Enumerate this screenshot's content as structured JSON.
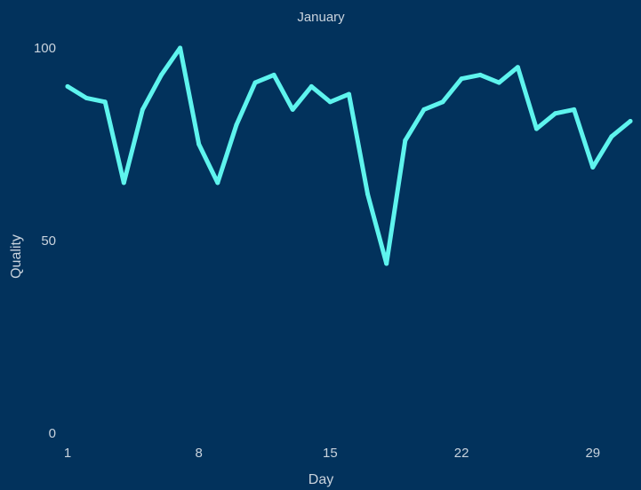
{
  "chart_data": {
    "type": "line",
    "title": "January",
    "xlabel": "Day",
    "ylabel": "Quality",
    "x_ticks": [
      1,
      8,
      15,
      22,
      29
    ],
    "y_ticks": [
      0,
      50,
      100
    ],
    "xlim": [
      1,
      31
    ],
    "ylim": [
      0,
      100
    ],
    "grid": false,
    "series": [
      {
        "x": [
          1,
          2,
          3,
          4,
          5,
          6,
          7,
          8,
          9,
          10,
          11,
          12,
          13,
          14,
          15,
          16,
          17,
          18,
          19,
          20,
          21,
          22,
          23,
          24,
          25,
          26,
          27,
          28,
          29,
          30,
          31
        ],
        "values": [
          90,
          87,
          86,
          65,
          84,
          93,
          100,
          75,
          65,
          80,
          91,
          93,
          84,
          90,
          86,
          88,
          62,
          44,
          76,
          84,
          86,
          92,
          93,
          91,
          95,
          79,
          83,
          84,
          69,
          77,
          81
        ],
        "color": "#5ef4ee"
      }
    ],
    "colors": {
      "background": "#02325c",
      "line": "#5ef4ee",
      "text": "#c9d3dd"
    }
  }
}
